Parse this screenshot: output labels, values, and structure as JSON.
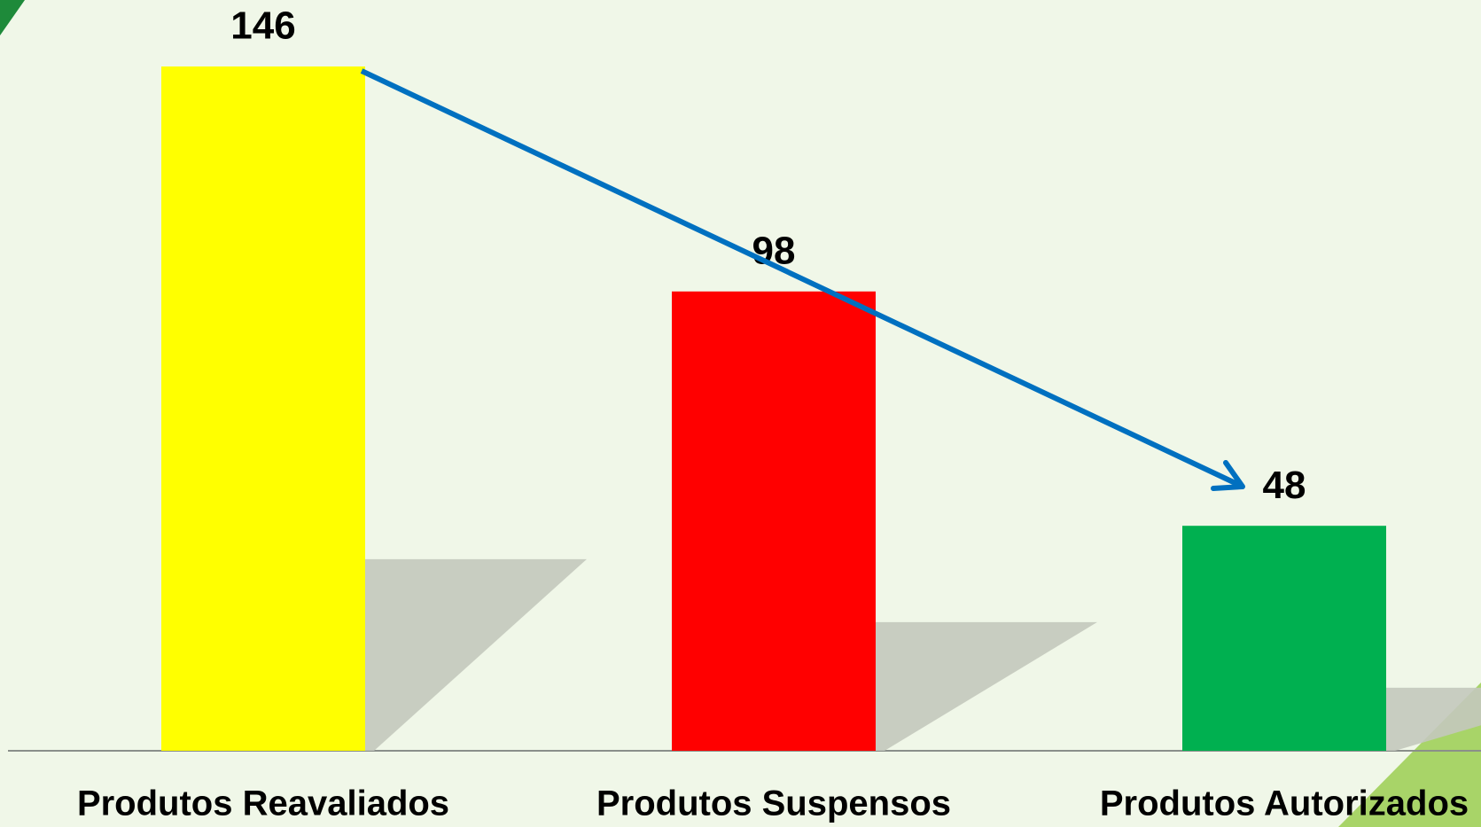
{
  "chart_data": {
    "type": "bar",
    "categories": [
      "Produtos Reavaliados",
      "Produtos Suspensos",
      "Produtos Autorizados"
    ],
    "values": [
      146,
      98,
      48
    ],
    "colors": [
      "#ffff00",
      "#ff0000",
      "#00b050"
    ]
  }
}
